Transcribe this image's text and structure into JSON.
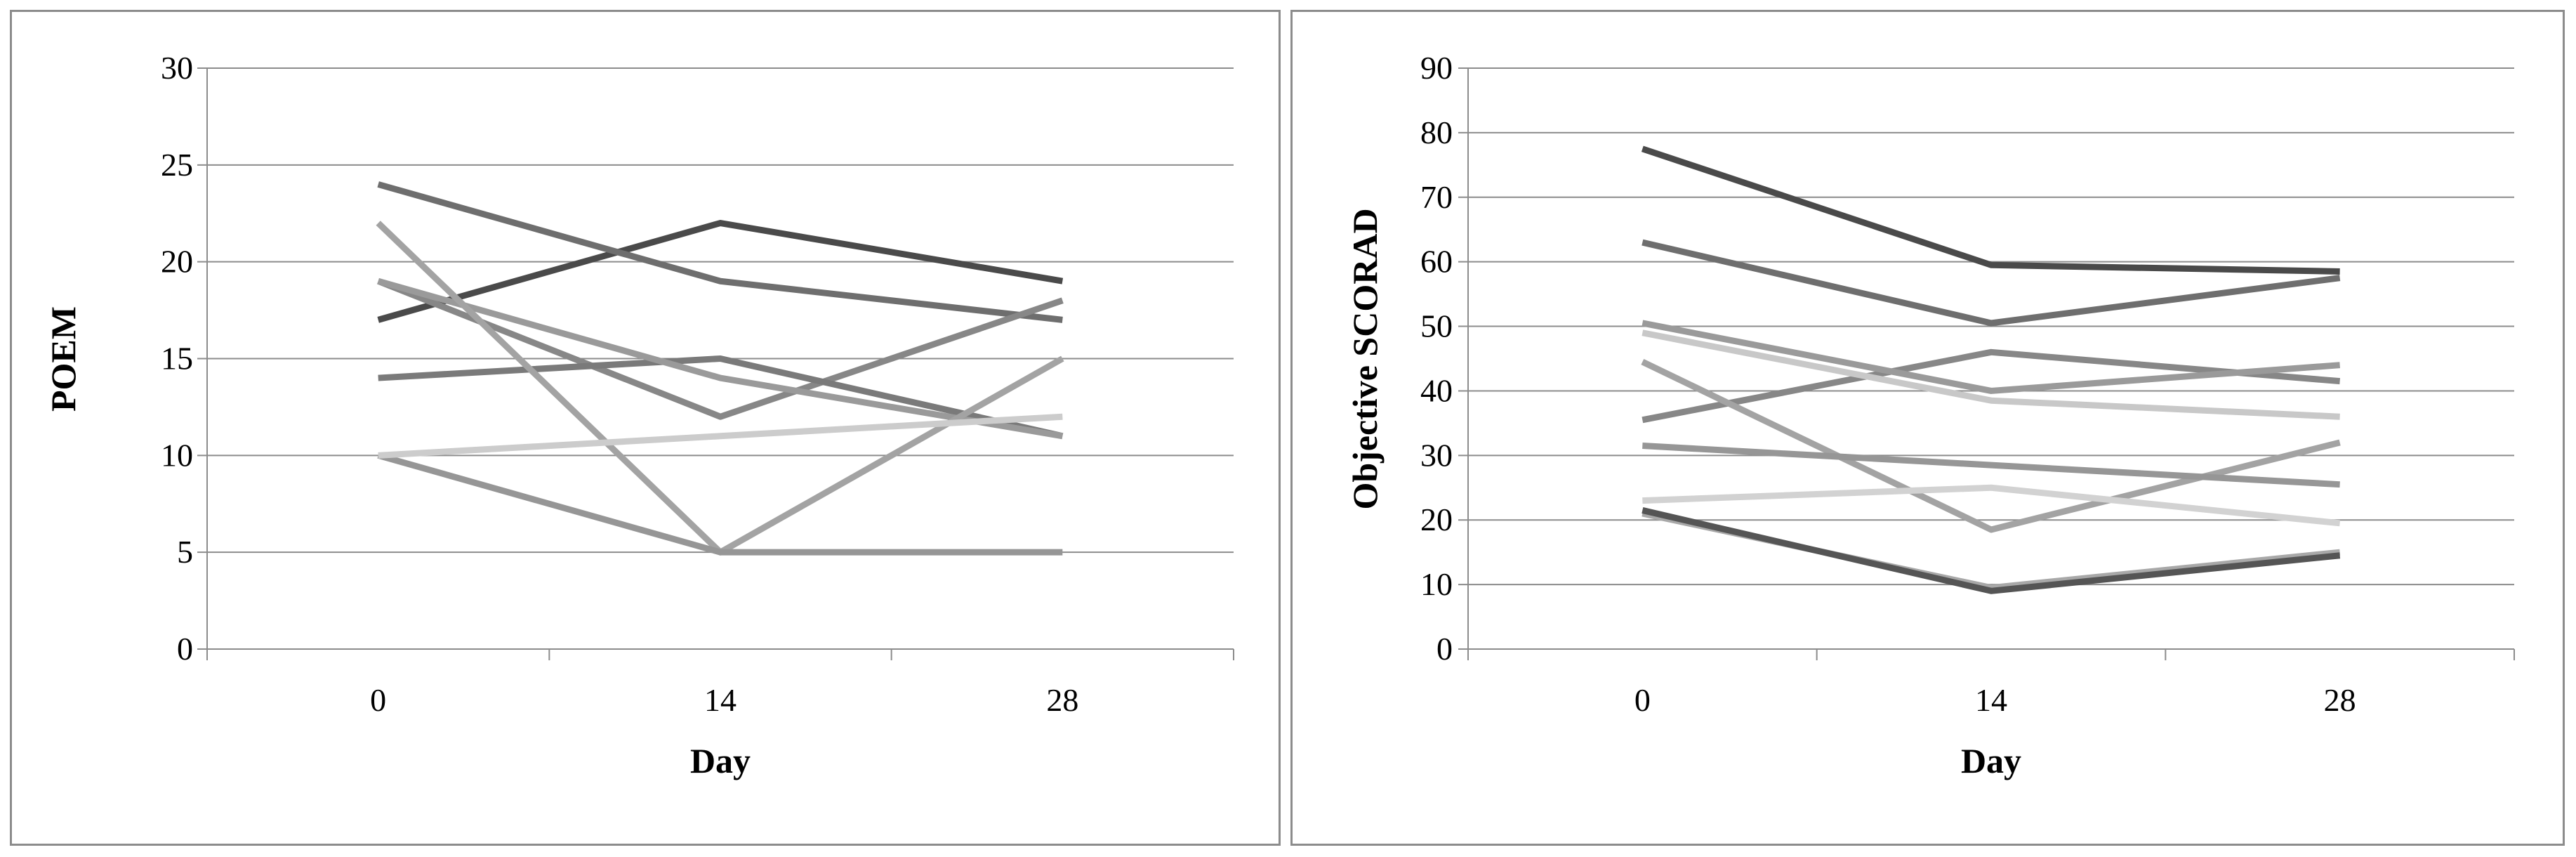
{
  "chart_data": [
    {
      "type": "line",
      "title": "",
      "xlabel": "Day",
      "ylabel": "POEM",
      "categories": [
        "0",
        "14",
        "28"
      ],
      "ylim": [
        0,
        30
      ],
      "yticks": [
        0,
        5,
        10,
        15,
        20,
        25,
        30
      ],
      "grid": true,
      "legend": "none",
      "series": [
        {
          "color": "#4a4a4a",
          "values": [
            17,
            22,
            19
          ]
        },
        {
          "color": "#6e6e6e",
          "values": [
            24,
            19,
            17
          ]
        },
        {
          "color": "#878787",
          "values": [
            19,
            12,
            18
          ]
        },
        {
          "color": "#7a7a7a",
          "values": [
            14,
            15,
            11
          ]
        },
        {
          "color": "#9a9a9a",
          "values": [
            19,
            14,
            11
          ]
        },
        {
          "color": "#a3a3a3",
          "values": [
            22,
            5,
            15
          ]
        },
        {
          "color": "#969696",
          "values": [
            10,
            5,
            5
          ]
        },
        {
          "color": "#cccccc",
          "values": [
            10,
            11,
            12
          ]
        }
      ]
    },
    {
      "type": "line",
      "title": "",
      "xlabel": "Day",
      "ylabel": "Objective SCORAD",
      "categories": [
        "0",
        "14",
        "28"
      ],
      "ylim": [
        0,
        90
      ],
      "yticks": [
        0,
        10,
        20,
        30,
        40,
        50,
        60,
        70,
        80,
        90
      ],
      "grid": true,
      "legend": "none",
      "series": [
        {
          "color": "#4a4a4a",
          "values": [
            77.5,
            59.5,
            58.5
          ]
        },
        {
          "color": "#6e6e6e",
          "values": [
            63,
            50.5,
            57.5
          ]
        },
        {
          "color": "#878787",
          "values": [
            35.5,
            46,
            41.5
          ]
        },
        {
          "color": "#9a9a9a",
          "values": [
            50.5,
            40,
            44
          ]
        },
        {
          "color": "#c8c8c8",
          "values": [
            49,
            38.5,
            36
          ]
        },
        {
          "color": "#a3a3a3",
          "values": [
            44.5,
            18.5,
            32
          ]
        },
        {
          "color": "#969696",
          "values": [
            31.5,
            28.5,
            25.5
          ]
        },
        {
          "color": "#d2d2d2",
          "values": [
            23,
            25,
            19.5
          ]
        },
        {
          "color": "#a8a8a8",
          "values": [
            21,
            9.5,
            15
          ]
        },
        {
          "color": "#555555",
          "values": [
            21.5,
            9,
            14.5
          ]
        }
      ]
    }
  ]
}
